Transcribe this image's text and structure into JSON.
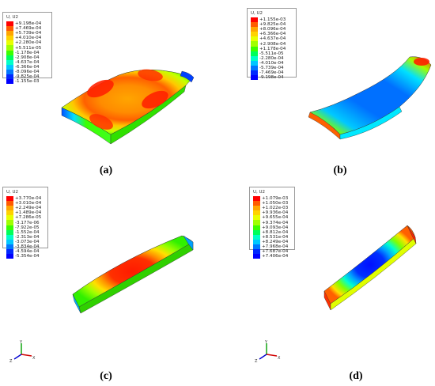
{
  "panels": [
    {
      "id": "a",
      "caption": "(a)",
      "legend_title": "U, U2",
      "legend_values": [
        "+9.198e-04",
        "+7.469e-04",
        "+5.739e-04",
        "+4.010e-04",
        "+2.280e-04",
        "+5.511e-05",
        "-1.178e-04",
        "-2.908e-04",
        "-4.637e-04",
        "-6.366e-04",
        "-8.096e-04",
        "-9.825e-04",
        "-1.155e-03"
      ]
    },
    {
      "id": "b",
      "caption": "(b)",
      "legend_title": "U, U2",
      "legend_values": [
        "+1.155e-03",
        "+9.825e-04",
        "+8.096e-04",
        "+6.366e-04",
        "+4.637e-04",
        "+2.908e-04",
        "+1.178e-04",
        "-5.511e-05",
        "-2.280e-04",
        "-4.010e-04",
        "-5.739e-04",
        "-7.469e-04",
        "-9.198e-04"
      ]
    },
    {
      "id": "c",
      "caption": "(c)",
      "legend_title": "U, U2",
      "legend_values": [
        "+3.770e-04",
        "+3.010e-04",
        "+2.249e-04",
        "+1.489e-04",
        "+7.286e-05",
        "-3.177e-06",
        "-7.922e-05",
        "-1.552e-04",
        "-2.313e-04",
        "-3.073e-04",
        "-3.834e-04",
        "-4.594e-04",
        "-5.354e-04"
      ]
    },
    {
      "id": "d",
      "caption": "(d)",
      "legend_title": "U, U2",
      "legend_values": [
        "+1.079e-03",
        "+1.050e-03",
        "+1.022e-03",
        "+9.936e-04",
        "+9.655e-04",
        "+9.374e-04",
        "+9.093e-04",
        "+8.812e-04",
        "+8.531e-04",
        "+8.249e-04",
        "+7.968e-04",
        "+7.687e-04",
        "+7.406e-04"
      ]
    }
  ],
  "legend_colors": [
    "#ff0000",
    "#ff5a00",
    "#ffa500",
    "#ffd200",
    "#e8ff00",
    "#a0ff00",
    "#3cff00",
    "#00ff5a",
    "#00ffc8",
    "#00c8ff",
    "#0078ff",
    "#0028ff",
    "#0000ff"
  ],
  "triad": {
    "x": "X",
    "y": "Y",
    "z": "Z"
  }
}
